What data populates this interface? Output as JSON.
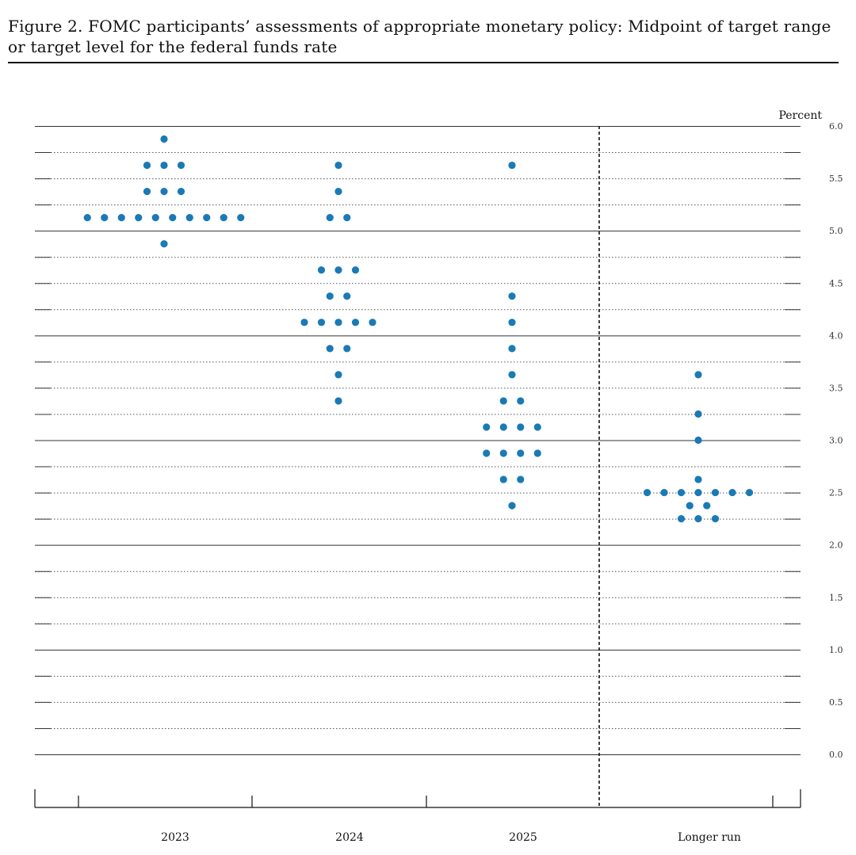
{
  "figure": {
    "title": "Figure 2.  FOMC participants’ assessments of appropriate monetary policy:  Midpoint of target range or target level for the federal funds rate"
  },
  "chart_data": {
    "type": "scatter",
    "title": "Figure 2.  FOMC participants’ assessments of appropriate monetary policy:  Midpoint of target range or target level for the federal funds rate",
    "ylabel": "Percent",
    "ylim": [
      0,
      6
    ],
    "ytick_step": 0.25,
    "ytick_labels": [
      "0.0",
      "0.5",
      "1.0",
      "1.5",
      "2.0",
      "2.5",
      "3.0",
      "3.5",
      "4.0",
      "4.5",
      "5.0",
      "5.5",
      "6.0"
    ],
    "categories": [
      "2023",
      "2024",
      "2025",
      "Longer run"
    ],
    "grid": true,
    "dot_color": "#1a7ab5",
    "projections": [
      {
        "category": "2023",
        "rates": [
          {
            "value": 5.875,
            "count": 1
          },
          {
            "value": 5.625,
            "count": 3
          },
          {
            "value": 5.375,
            "count": 3
          },
          {
            "value": 5.125,
            "count": 10
          },
          {
            "value": 4.875,
            "count": 1
          }
        ]
      },
      {
        "category": "2024",
        "rates": [
          {
            "value": 5.625,
            "count": 1
          },
          {
            "value": 5.375,
            "count": 1
          },
          {
            "value": 5.125,
            "count": 2
          },
          {
            "value": 4.625,
            "count": 3
          },
          {
            "value": 4.375,
            "count": 2
          },
          {
            "value": 4.125,
            "count": 5
          },
          {
            "value": 3.875,
            "count": 2
          },
          {
            "value": 3.625,
            "count": 1
          },
          {
            "value": 3.375,
            "count": 1
          }
        ]
      },
      {
        "category": "2025",
        "rates": [
          {
            "value": 5.625,
            "count": 1
          },
          {
            "value": 4.375,
            "count": 1
          },
          {
            "value": 4.125,
            "count": 1
          },
          {
            "value": 3.875,
            "count": 1
          },
          {
            "value": 3.625,
            "count": 1
          },
          {
            "value": 3.375,
            "count": 2
          },
          {
            "value": 3.125,
            "count": 4
          },
          {
            "value": 2.875,
            "count": 4
          },
          {
            "value": 2.625,
            "count": 2
          },
          {
            "value": 2.375,
            "count": 1
          }
        ]
      },
      {
        "category": "Longer run",
        "rates": [
          {
            "value": 3.625,
            "count": 1
          },
          {
            "value": 3.25,
            "count": 1
          },
          {
            "value": 3.0,
            "count": 1
          },
          {
            "value": 2.625,
            "count": 1
          },
          {
            "value": 2.5,
            "count": 7
          },
          {
            "value": 2.375,
            "count": 2
          },
          {
            "value": 2.25,
            "count": 3
          }
        ]
      }
    ]
  }
}
